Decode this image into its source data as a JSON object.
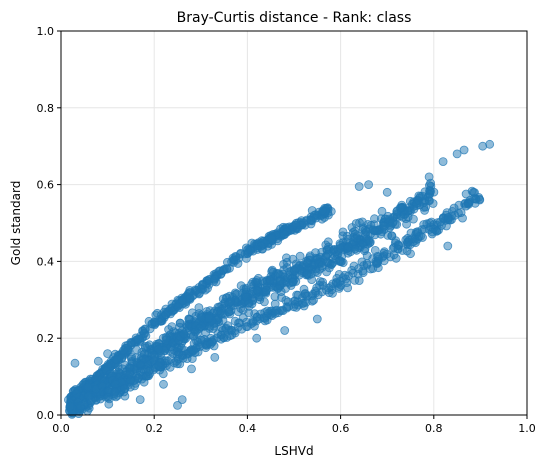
{
  "chart_data": {
    "type": "scatter",
    "title": "Bray-Curtis distance - Rank: class",
    "xlabel": "LSHVd",
    "ylabel": "Gold standard",
    "xlim": [
      0.0,
      1.0
    ],
    "ylim": [
      0.0,
      1.0
    ],
    "xticks": [
      "0.0",
      "0.2",
      "0.4",
      "0.6",
      "0.8",
      "1.0"
    ],
    "yticks": [
      "0.0",
      "0.2",
      "0.4",
      "0.6",
      "0.8",
      "1.0"
    ],
    "grid": true,
    "marker_color": "#1f77b4",
    "marker_alpha": 0.5,
    "bands": [
      {
        "name": "",
        "x": [
          0.02,
          0.08,
          0.15,
          0.22,
          0.3,
          0.38,
          0.45,
          0.52,
          0.58
        ],
        "y": [
          0.04,
          0.1,
          0.18,
          0.26,
          0.33,
          0.41,
          0.46,
          0.5,
          0.54
        ]
      },
      {
        "name": "",
        "x": [
          0.02,
          0.1,
          0.2,
          0.3,
          0.4,
          0.5,
          0.6,
          0.7,
          0.8
        ],
        "y": [
          0.02,
          0.08,
          0.16,
          0.24,
          0.31,
          0.37,
          0.43,
          0.5,
          0.58
        ]
      },
      {
        "name": "",
        "x": [
          0.1,
          0.2,
          0.3,
          0.4,
          0.5,
          0.6,
          0.7,
          0.8,
          0.9
        ],
        "y": [
          0.05,
          0.12,
          0.18,
          0.24,
          0.29,
          0.35,
          0.42,
          0.49,
          0.57
        ]
      }
    ],
    "highlight_points": [
      {
        "x": 0.92,
        "y": 0.705
      },
      {
        "x": 0.905,
        "y": 0.7
      },
      {
        "x": 0.865,
        "y": 0.69
      },
      {
        "x": 0.85,
        "y": 0.68
      },
      {
        "x": 0.82,
        "y": 0.66
      },
      {
        "x": 0.79,
        "y": 0.62
      },
      {
        "x": 0.885,
        "y": 0.58
      },
      {
        "x": 0.64,
        "y": 0.595
      },
      {
        "x": 0.66,
        "y": 0.6
      },
      {
        "x": 0.7,
        "y": 0.58
      },
      {
        "x": 0.08,
        "y": 0.14
      },
      {
        "x": 0.1,
        "y": 0.16
      },
      {
        "x": 0.03,
        "y": 0.135
      },
      {
        "x": 0.17,
        "y": 0.04
      },
      {
        "x": 0.25,
        "y": 0.025
      },
      {
        "x": 0.26,
        "y": 0.04
      },
      {
        "x": 0.56,
        "y": 0.51
      },
      {
        "x": 0.52,
        "y": 0.5
      },
      {
        "x": 0.48,
        "y": 0.47
      },
      {
        "x": 0.4,
        "y": 0.43
      },
      {
        "x": 0.83,
        "y": 0.44
      },
      {
        "x": 0.75,
        "y": 0.42
      },
      {
        "x": 0.68,
        "y": 0.4
      },
      {
        "x": 0.64,
        "y": 0.35
      },
      {
        "x": 0.55,
        "y": 0.25
      },
      {
        "x": 0.48,
        "y": 0.22
      },
      {
        "x": 0.42,
        "y": 0.2
      },
      {
        "x": 0.33,
        "y": 0.15
      },
      {
        "x": 0.28,
        "y": 0.12
      },
      {
        "x": 0.22,
        "y": 0.08
      }
    ]
  }
}
